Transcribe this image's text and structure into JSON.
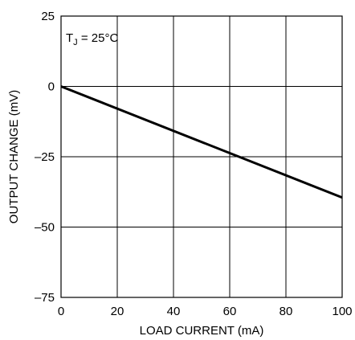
{
  "chart_data": {
    "type": "line",
    "title": "",
    "xlabel": "LOAD CURRENT (mA)",
    "ylabel": "OUTPUT CHANGE (mV)",
    "xlim": [
      0,
      100
    ],
    "ylim": [
      -75,
      25
    ],
    "xticks": [
      0,
      20,
      40,
      60,
      80,
      100
    ],
    "yticks": [
      25,
      0,
      -25,
      -50,
      -75
    ],
    "xtick_labels": [
      "0",
      "20",
      "40",
      "60",
      "80",
      "100"
    ],
    "ytick_labels": [
      "25",
      "0",
      "–25",
      "–50",
      "–75"
    ],
    "grid": true,
    "annotation": {
      "main": "T",
      "sub": "J",
      "rest": " = 25°C"
    },
    "series": [
      {
        "x": [
          0,
          100
        ],
        "y": [
          0,
          -39.5
        ]
      }
    ]
  },
  "colors": {
    "line": "#000000",
    "grid": "#000000",
    "background": "#ffffff"
  }
}
